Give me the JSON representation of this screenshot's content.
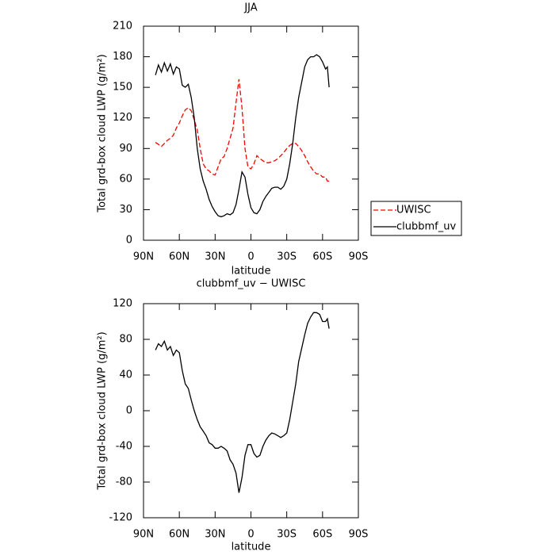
{
  "chart_data": [
    {
      "type": "line",
      "title": "JJA",
      "xlabel": "latitude",
      "ylabel": "Total grd-box cloud LWP (g/m²)",
      "x": [
        80,
        77.5,
        75,
        72.5,
        70,
        67.5,
        65,
        62.5,
        60,
        57.5,
        55,
        52.5,
        50,
        47.5,
        45,
        42.5,
        40,
        37.5,
        35,
        32.5,
        30,
        27.5,
        25,
        22.5,
        20,
        17.5,
        15,
        12.5,
        10,
        7.5,
        5,
        2.5,
        0,
        -2.5,
        -5,
        -7.5,
        -10,
        -12.5,
        -15,
        -17.5,
        -20,
        -22.5,
        -25,
        -27.5,
        -30,
        -32.5,
        -35,
        -37.5,
        -40,
        -42.5,
        -45,
        -47.5,
        -50,
        -52.5,
        -55,
        -57.5,
        -60,
        -62.5,
        -64,
        -65.5
      ],
      "series": [
        {
          "name": "UWISC",
          "color": "#ff0000",
          "linestyle": "dashed",
          "values": [
            96,
            94,
            92,
            95,
            98,
            100,
            103,
            110,
            115,
            122,
            128,
            130,
            127,
            118,
            108,
            90,
            75,
            70,
            68,
            65,
            64,
            72,
            80,
            82,
            90,
            100,
            110,
            135,
            158,
            130,
            90,
            72,
            70,
            75,
            83,
            80,
            78,
            76,
            76,
            77,
            78,
            80,
            83,
            86,
            90,
            93,
            95,
            95,
            92,
            88,
            83,
            77,
            72,
            68,
            65,
            65,
            62,
            62,
            58,
            58
          ]
        },
        {
          "name": "clubbmf_uv",
          "color": "#000000",
          "linestyle": "solid",
          "values": [
            162,
            172,
            165,
            174,
            166,
            173,
            163,
            170,
            168,
            152,
            150,
            153,
            140,
            120,
            90,
            70,
            58,
            50,
            40,
            33,
            28,
            24,
            23,
            24,
            26,
            25,
            27,
            35,
            50,
            67,
            62,
            45,
            32,
            27,
            26,
            30,
            38,
            43,
            47,
            51,
            52,
            52,
            50,
            53,
            60,
            75,
            95,
            120,
            140,
            155,
            170,
            177,
            180,
            180,
            182,
            180,
            175,
            168,
            170,
            150
          ]
        }
      ],
      "xlim": [
        90,
        -90
      ],
      "xticks": [
        {
          "value": 90,
          "label": "90N"
        },
        {
          "value": 60,
          "label": "60N"
        },
        {
          "value": 30,
          "label": "30N"
        },
        0,
        {
          "value": -30,
          "label": "30S"
        },
        {
          "value": -60,
          "label": "60S"
        },
        {
          "value": -90,
          "label": "90S"
        }
      ],
      "ylim": [
        0,
        210
      ],
      "yticks": [
        0,
        30,
        60,
        90,
        120,
        150,
        180,
        210
      ],
      "legend": "right"
    },
    {
      "type": "line",
      "title": "clubbmf_uv − UWISC",
      "xlabel": "latitude",
      "ylabel": "Total grd-box cloud LWP (g/m²)",
      "x": [
        80,
        77.5,
        75,
        72.5,
        70,
        67.5,
        65,
        62.5,
        60,
        57.5,
        55,
        52.5,
        50,
        47.5,
        45,
        42.5,
        40,
        37.5,
        35,
        32.5,
        30,
        27.5,
        25,
        22.5,
        20,
        17.5,
        15,
        12.5,
        10,
        7.5,
        5,
        2.5,
        0,
        -2.5,
        -5,
        -7.5,
        -10,
        -12.5,
        -15,
        -17.5,
        -20,
        -22.5,
        -25,
        -27.5,
        -30,
        -32.5,
        -35,
        -37.5,
        -40,
        -42.5,
        -45,
        -47.5,
        -50,
        -52.5,
        -55,
        -57.5,
        -60,
        -62.5,
        -64,
        -65.5
      ],
      "values": [
        68,
        75,
        72,
        78,
        68,
        72,
        62,
        68,
        65,
        45,
        30,
        25,
        12,
        0,
        -10,
        -18,
        -23,
        -28,
        -36,
        -38,
        -42,
        -42,
        -40,
        -42,
        -45,
        -55,
        -60,
        -70,
        -92,
        -75,
        -50,
        -38,
        -38,
        -48,
        -52,
        -50,
        -40,
        -33,
        -28,
        -25,
        -26,
        -28,
        -30,
        -28,
        -25,
        -10,
        10,
        30,
        55,
        70,
        85,
        98,
        105,
        110,
        110,
        108,
        100,
        100,
        103,
        92
      ],
      "color": "#000000",
      "xlim": [
        90,
        -90
      ],
      "xticks": [
        {
          "value": 90,
          "label": "90N"
        },
        {
          "value": 60,
          "label": "60N"
        },
        {
          "value": 30,
          "label": "30N"
        },
        0,
        {
          "value": -30,
          "label": "30S"
        },
        {
          "value": -60,
          "label": "60S"
        },
        {
          "value": -90,
          "label": "90S"
        }
      ],
      "ylim": [
        -120,
        120
      ],
      "yticks": [
        -120,
        -80,
        -40,
        0,
        40,
        80,
        120
      ]
    }
  ]
}
